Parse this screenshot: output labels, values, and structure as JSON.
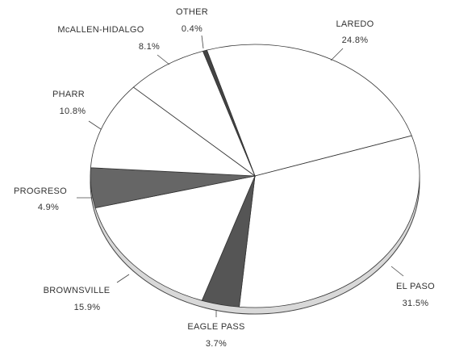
{
  "chart_data": {
    "type": "pie",
    "categories": [
      "LAREDO",
      "EL PASO",
      "EAGLE PASS",
      "BROWNSVILLE",
      "PROGRESO",
      "PHARR",
      "McALLEN-HIDALGO",
      "OTHER"
    ],
    "values": [
      24.8,
      31.5,
      3.7,
      15.9,
      4.9,
      10.8,
      8.1,
      0.4
    ],
    "value_labels": [
      "24.8%",
      "31.5%",
      "3.7%",
      "15.9%",
      "4.9%",
      "10.8%",
      "8.1%",
      "0.4%"
    ],
    "colors": [
      "#ffffff",
      "#ffffff",
      "#555555",
      "#ffffff",
      "#666666",
      "#ffffff",
      "#ffffff",
      "#444444"
    ]
  }
}
